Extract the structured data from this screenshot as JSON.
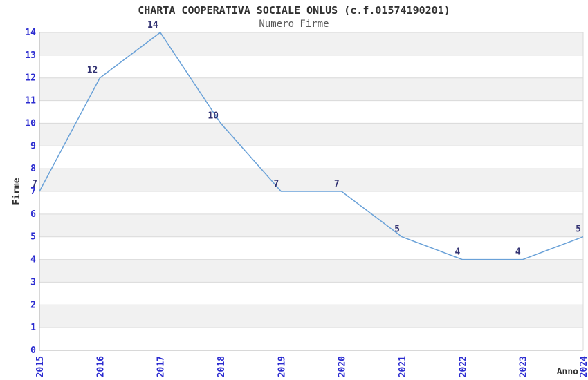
{
  "page": {
    "background": "#ffffff"
  },
  "chart_data": {
    "type": "line",
    "title": "CHARTA COOPERATIVA SOCIALE ONLUS (c.f.01574190201)",
    "subtitle": "Numero Firme",
    "xlabel": "Anno",
    "ylabel": "Firme",
    "x": [
      "2015",
      "2016",
      "2017",
      "2018",
      "2019",
      "2020",
      "2021",
      "2022",
      "2023",
      "2024"
    ],
    "values": [
      7,
      12,
      14,
      10,
      7,
      7,
      5,
      4,
      4,
      5
    ],
    "ylim": [
      0,
      14
    ],
    "ytick_step": 1,
    "grid": true,
    "legend": "none",
    "data_labels": true,
    "band_pattern": "gray bands on odd intervals 1-2,3-4,...,13-14",
    "colors": {
      "line": "#69a1d8",
      "tick": "#2b2bd0",
      "label": "#323272",
      "band": "#f1f1f1",
      "grid": "#d9d9d9",
      "spine": "#b0b0b0",
      "text": "#303030",
      "title": "#303030",
      "subtitle": "#5a5a5a",
      "background": "#ffffff"
    }
  }
}
